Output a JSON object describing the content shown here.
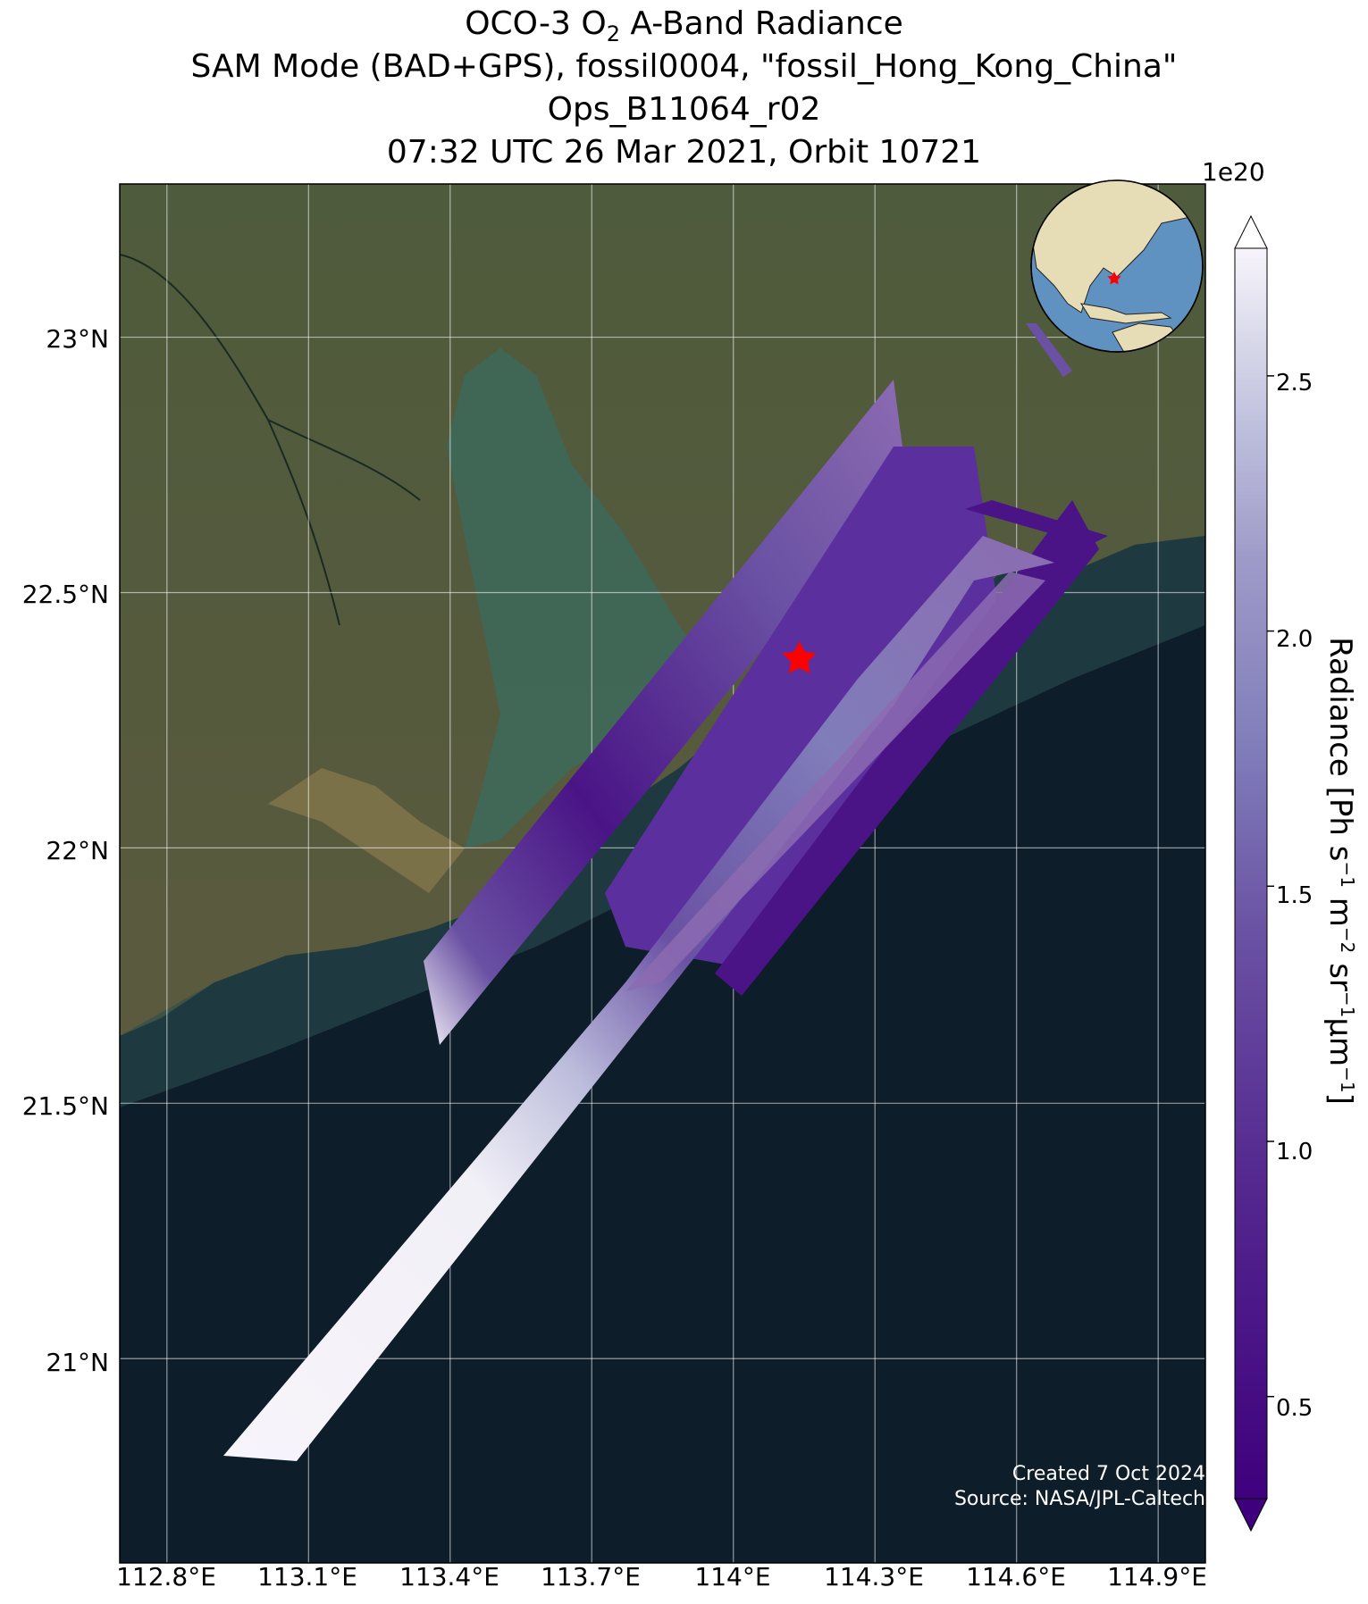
{
  "title": {
    "line1_prefix": "OCO-3 O",
    "line1_sub": "2",
    "line1_suffix": " A-Band Radiance",
    "line2": "SAM Mode (BAD+GPS), fossil0004, \"fossil_Hong_Kong_China\"",
    "line3": "Ops_B11064_r02",
    "line4": "07:32 UTC 26 Mar 2021, Orbit 10721"
  },
  "axes": {
    "lat_ticks": [
      "23°N",
      "22.5°N",
      "22°N",
      "21.5°N",
      "21°N"
    ],
    "lon_ticks": [
      "112.8°E",
      "113.1°E",
      "113.4°E",
      "113.7°E",
      "114°E",
      "114.3°E",
      "114.6°E",
      "114.9°E"
    ],
    "lat_range": [
      20.6,
      23.3
    ],
    "lon_range": [
      112.7,
      115.0
    ]
  },
  "colorbar": {
    "exponent": "1e20",
    "ticks": [
      "0.5",
      "1.0",
      "1.5",
      "2.0",
      "2.5"
    ],
    "label_prefix": "Radiance [Ph s",
    "label_sup1": "−1",
    "label_mid1": " m",
    "label_sup2": "−2",
    "label_mid2": " sr",
    "label_sup3": "−1",
    "label_mid3": "μm",
    "label_sup4": "−1",
    "label_suffix": "]",
    "colormap": "Purples_r",
    "range": [
      0.3,
      2.75
    ]
  },
  "target": {
    "name": "fossil_Hong_Kong_China",
    "lon": 114.14,
    "lat": 22.37,
    "marker": "red-star-icon"
  },
  "credit": {
    "line1": "Created 7 Oct 2024",
    "line2": "Source: NASA/JPL-Caltech"
  },
  "colors": {
    "ocean": "#0e1d2a",
    "land": "#4a5a3a",
    "star": "#ff0000",
    "swath_dark": "#3f007d",
    "swath_light": "#f7f4fa"
  }
}
